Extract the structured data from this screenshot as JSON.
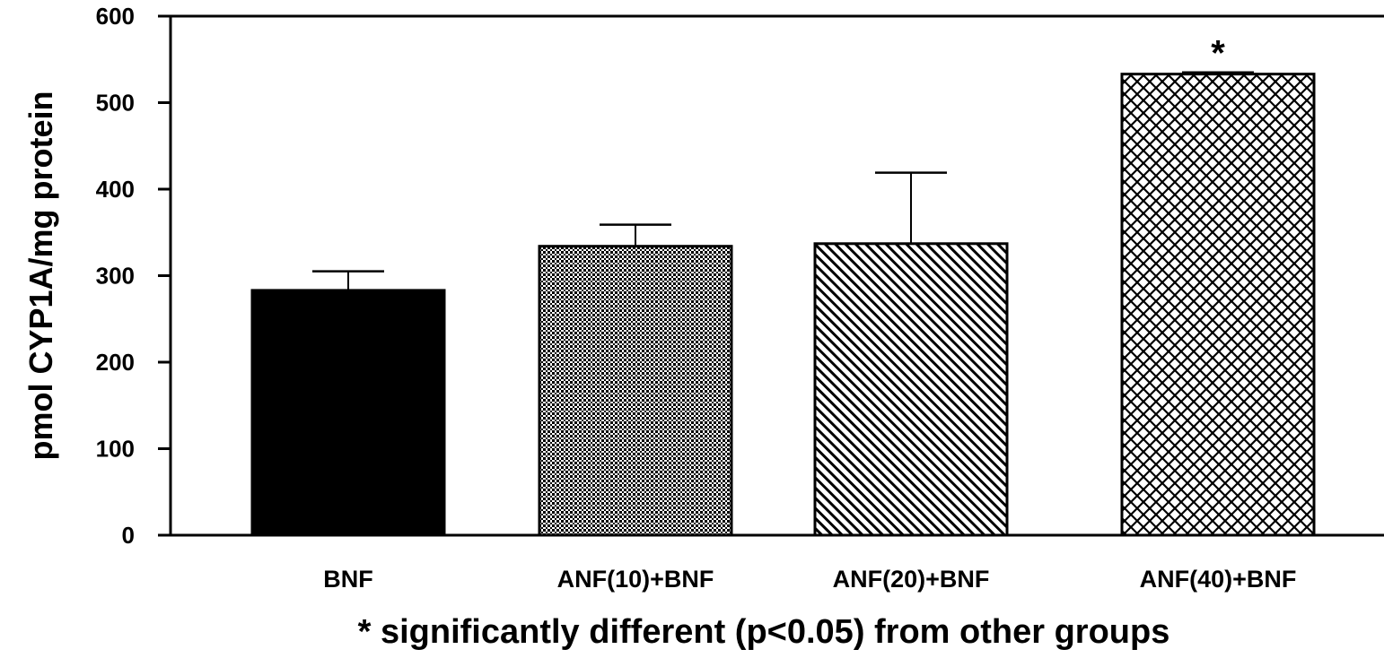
{
  "chart_data": {
    "type": "bar",
    "title": "",
    "xlabel": "",
    "ylabel": "pmol CYP1A/mg protein",
    "ylim": [
      0,
      600
    ],
    "yticks": [
      0,
      100,
      200,
      300,
      400,
      500,
      600
    ],
    "categories": [
      "BNF",
      "ANF(10)+BNF",
      "ANF(20)+BNF",
      "ANF(40)+BNF"
    ],
    "values": [
      283,
      334,
      337,
      533
    ],
    "error_upper": [
      22,
      25,
      82,
      2
    ],
    "fill_patterns": [
      "solid",
      "fine-dots",
      "diagonal-lines",
      "crosshatch"
    ],
    "significance_markers": [
      "",
      "",
      "",
      "*"
    ],
    "footnote": "* significantly different (p<0.05) from other groups",
    "grid": false,
    "legend": "none",
    "colors": {
      "bar_stroke": "#000000",
      "bar_fill": "#000000",
      "background": "#ffffff"
    }
  }
}
